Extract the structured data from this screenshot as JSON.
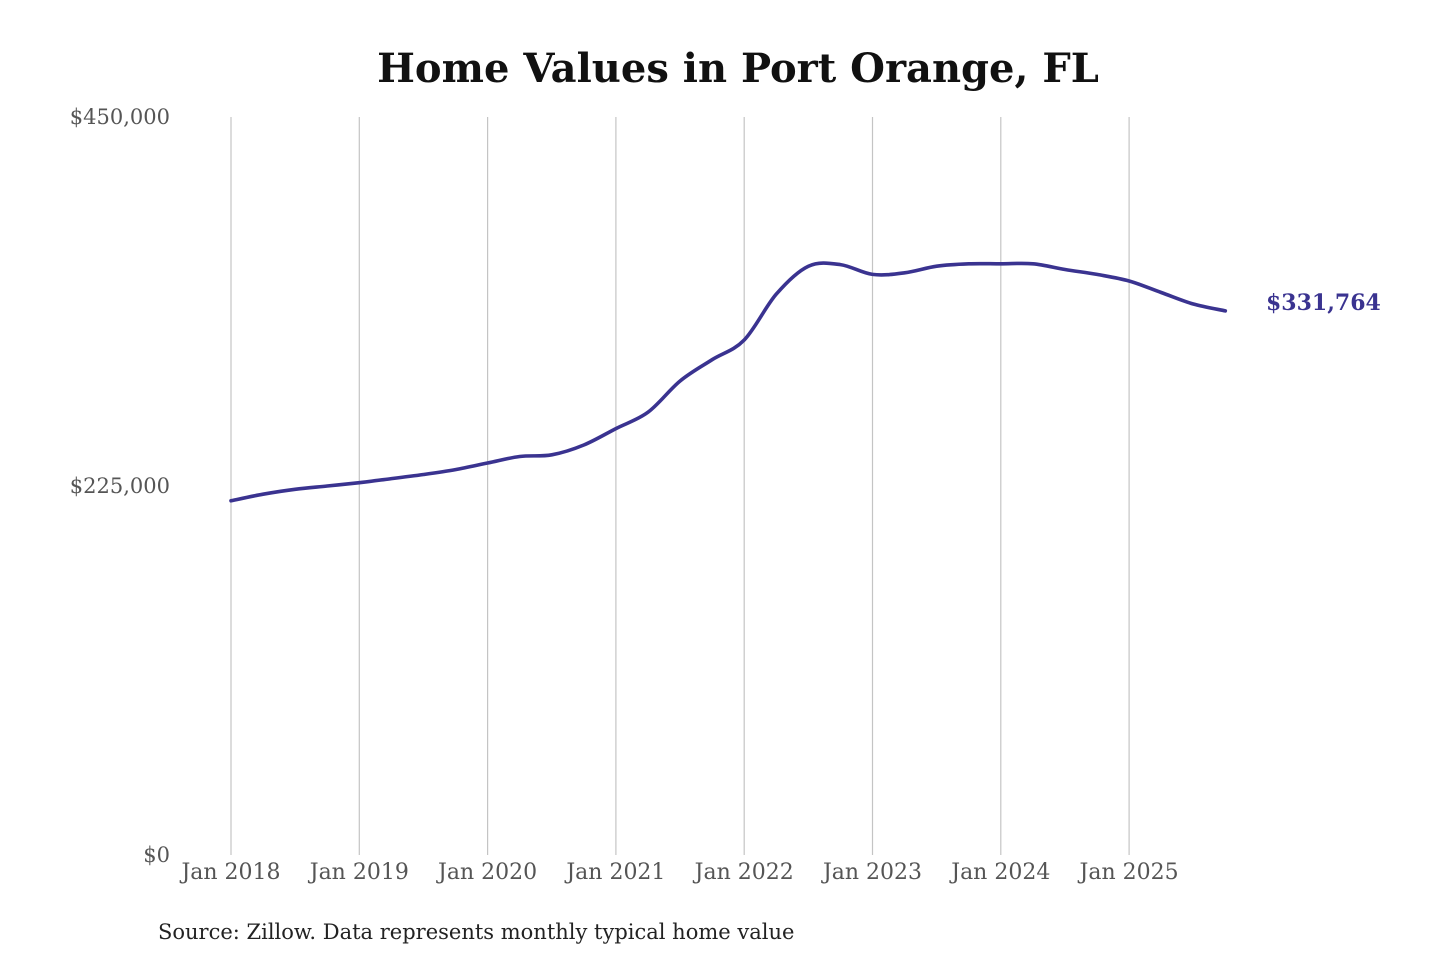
{
  "chart_data": {
    "type": "line",
    "title": "Home Values in Port Orange, FL",
    "source": "Source: Zillow. Data represents monthly typical home value",
    "xlabel": "",
    "ylabel": "",
    "ylim": [
      0,
      450000
    ],
    "yticks": [
      0,
      225000,
      450000
    ],
    "ytick_labels": [
      "$0",
      "$225,000",
      "$450,000"
    ],
    "xlim": [
      "2018-01",
      "2025-12"
    ],
    "xticks": [
      "2018-01",
      "2019-01",
      "2020-01",
      "2021-01",
      "2022-01",
      "2023-01",
      "2024-01",
      "2025-01"
    ],
    "xtick_labels": [
      "Jan 2018",
      "Jan 2019",
      "Jan 2020",
      "Jan 2021",
      "Jan 2022",
      "Jan 2023",
      "Jan 2024",
      "Jan 2025"
    ],
    "grid": "vertical",
    "line_color": "#3a3390",
    "end_label": "$331,764",
    "series": [
      {
        "x": [
          "2018-01",
          "2018-04",
          "2018-07",
          "2018-10",
          "2019-01",
          "2019-04",
          "2019-07",
          "2019-10",
          "2020-01",
          "2020-04",
          "2020-07",
          "2020-10",
          "2021-01",
          "2021-04",
          "2021-07",
          "2021-10",
          "2022-01",
          "2022-04",
          "2022-07",
          "2022-10",
          "2023-01",
          "2023-04",
          "2023-07",
          "2023-10",
          "2024-01",
          "2024-04",
          "2024-07",
          "2024-10",
          "2025-01",
          "2025-04",
          "2025-07",
          "2025-10"
        ],
        "values": [
          216000,
          220000,
          223000,
          225000,
          227000,
          229500,
          232000,
          235000,
          239000,
          243000,
          244000,
          250000,
          260000,
          270000,
          289000,
          302000,
          314000,
          342000,
          359000,
          360000,
          354000,
          355000,
          359000,
          360500,
          360500,
          360500,
          357000,
          354000,
          350000,
          343000,
          336000,
          331764
        ]
      }
    ]
  }
}
